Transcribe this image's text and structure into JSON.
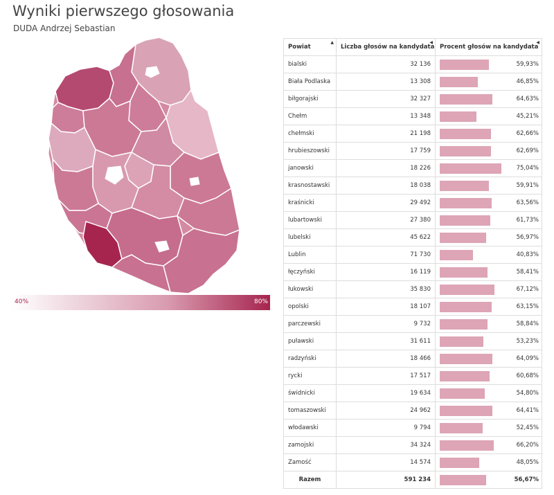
{
  "title": "Wyniki pierwszego głosowania",
  "subtitle": "DUDA Andrzej Sebastian",
  "colors": {
    "low": "#ffffff",
    "high": "#a6254f",
    "bar": "#dda5b5"
  },
  "legend": {
    "min_label": "40%",
    "max_label": "80%",
    "min": 40,
    "max": 80
  },
  "table": {
    "headers": [
      "Powiat",
      "Liczba głosów na kandydata",
      "Procent głosów na kandydata"
    ],
    "rows": [
      {
        "name": "bialski",
        "votes": "32 136",
        "pct_label": "59,93%",
        "pct": 59.93
      },
      {
        "name": "Biała Podlaska",
        "votes": "13 308",
        "pct_label": "46,85%",
        "pct": 46.85
      },
      {
        "name": "biłgorajski",
        "votes": "32 327",
        "pct_label": "64,63%",
        "pct": 64.63
      },
      {
        "name": "Chełm",
        "votes": "13 348",
        "pct_label": "45,21%",
        "pct": 45.21
      },
      {
        "name": "chełmski",
        "votes": "21 198",
        "pct_label": "62,66%",
        "pct": 62.66
      },
      {
        "name": "hrubieszowski",
        "votes": "17 759",
        "pct_label": "62,69%",
        "pct": 62.69
      },
      {
        "name": "janowski",
        "votes": "18 226",
        "pct_label": "75,04%",
        "pct": 75.04
      },
      {
        "name": "krasnostawski",
        "votes": "18 038",
        "pct_label": "59,91%",
        "pct": 59.91
      },
      {
        "name": "kraśnicki",
        "votes": "29 492",
        "pct_label": "63,56%",
        "pct": 63.56
      },
      {
        "name": "lubartowski",
        "votes": "27 380",
        "pct_label": "61,73%",
        "pct": 61.73
      },
      {
        "name": "lubelski",
        "votes": "45 622",
        "pct_label": "56,97%",
        "pct": 56.97
      },
      {
        "name": "Lublin",
        "votes": "71 730",
        "pct_label": "40,83%",
        "pct": 40.83
      },
      {
        "name": "łęczyński",
        "votes": "16 119",
        "pct_label": "58,41%",
        "pct": 58.41
      },
      {
        "name": "łukowski",
        "votes": "35 830",
        "pct_label": "67,12%",
        "pct": 67.12
      },
      {
        "name": "opolski",
        "votes": "18 107",
        "pct_label": "63,15%",
        "pct": 63.15
      },
      {
        "name": "parczewski",
        "votes": "9 732",
        "pct_label": "58,84%",
        "pct": 58.84
      },
      {
        "name": "puławski",
        "votes": "31 611",
        "pct_label": "53,23%",
        "pct": 53.23
      },
      {
        "name": "radzyński",
        "votes": "18 466",
        "pct_label": "64,09%",
        "pct": 64.09
      },
      {
        "name": "rycki",
        "votes": "17 517",
        "pct_label": "60,68%",
        "pct": 60.68
      },
      {
        "name": "świdnicki",
        "votes": "19 634",
        "pct_label": "54,80%",
        "pct": 54.8
      },
      {
        "name": "tomaszowski",
        "votes": "24 962",
        "pct_label": "64,41%",
        "pct": 64.41
      },
      {
        "name": "włodawski",
        "votes": "9 794",
        "pct_label": "52,45%",
        "pct": 52.45
      },
      {
        "name": "zamojski",
        "votes": "34 324",
        "pct_label": "66,20%",
        "pct": 66.2
      },
      {
        "name": "Zamość",
        "votes": "14 574",
        "pct_label": "48,05%",
        "pct": 48.05
      }
    ],
    "total": {
      "label": "Razem",
      "votes": "591 234",
      "pct_label": "56,67%",
      "pct": 56.67
    }
  }
}
